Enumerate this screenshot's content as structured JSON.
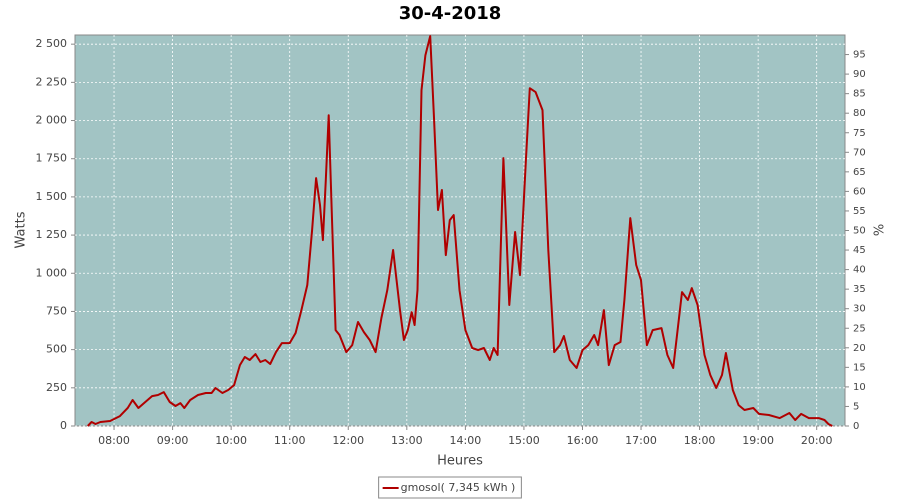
{
  "chart_data": {
    "type": "line",
    "title": "30-4-2018",
    "x_label": "Heures",
    "y_label": "Watts",
    "y2_label": "%",
    "x": [
      "07:33",
      "07:37",
      "07:41",
      "07:46",
      "07:56",
      "08:06",
      "08:14",
      "08:19",
      "08:25",
      "08:32",
      "08:39",
      "08:45",
      "08:51",
      "08:57",
      "09:03",
      "09:08",
      "09:12",
      "09:18",
      "09:26",
      "09:34",
      "09:40",
      "09:44",
      "09:51",
      "09:57",
      "10:03",
      "10:09",
      "10:14",
      "10:19",
      "10:25",
      "10:30",
      "10:35",
      "10:40",
      "10:46",
      "10:52",
      "11:00",
      "11:06",
      "11:12",
      "11:18",
      "11:23",
      "11:27",
      "11:31",
      "11:34",
      "11:37",
      "11:40",
      "11:43",
      "11:47",
      "11:51",
      "11:58",
      "12:04",
      "12:10",
      "12:16",
      "12:22",
      "12:28",
      "12:34",
      "12:40",
      "12:46",
      "12:53",
      "12:57",
      "13:01",
      "13:05",
      "13:08",
      "13:11",
      "13:15",
      "13:19",
      "13:24",
      "13:28",
      "13:32",
      "13:36",
      "13:40",
      "13:44",
      "13:48",
      "13:54",
      "14:00",
      "14:07",
      "14:13",
      "14:19",
      "14:25",
      "14:29",
      "14:33",
      "14:39",
      "14:45",
      "14:51",
      "14:56",
      "15:02",
      "15:06",
      "15:12",
      "15:19",
      "15:25",
      "15:31",
      "15:37",
      "15:41",
      "15:47",
      "15:54",
      "16:00",
      "16:06",
      "16:12",
      "16:16",
      "16:22",
      "16:27",
      "16:33",
      "16:39",
      "16:43",
      "16:49",
      "16:55",
      "17:00",
      "17:06",
      "17:12",
      "17:21",
      "17:27",
      "17:33",
      "17:42",
      "17:48",
      "17:52",
      "17:58",
      "18:05",
      "18:11",
      "18:17",
      "18:23",
      "18:27",
      "18:34",
      "18:40",
      "18:46",
      "18:55",
      "19:01",
      "19:11",
      "19:22",
      "19:32",
      "19:38",
      "19:44",
      "19:52",
      "20:02",
      "20:08",
      "20:12",
      "20:16"
    ],
    "series": [
      {
        "name": "gmosol( 7,345 kWh )",
        "color": "#b00000",
        "values": [
          0,
          26,
          13,
          26,
          33,
          65,
          118,
          170,
          118,
          157,
          196,
          203,
          222,
          157,
          131,
          150,
          118,
          170,
          203,
          216,
          216,
          249,
          216,
          236,
          268,
          399,
          452,
          432,
          471,
          419,
          432,
          406,
          484,
          543,
          543,
          609,
          759,
          923,
          1283,
          1623,
          1447,
          1217,
          1610,
          2035,
          1414,
          628,
          596,
          484,
          530,
          681,
          615,
          563,
          484,
          707,
          890,
          1152,
          759,
          563,
          628,
          746,
          661,
          890,
          2199,
          2428,
          2553,
          2003,
          1414,
          1545,
          1119,
          1348,
          1381,
          890,
          628,
          511,
          497,
          511,
          432,
          511,
          465,
          1754,
          792,
          1270,
          988,
          1741,
          2212,
          2186,
          2068,
          1152,
          484,
          530,
          589,
          432,
          380,
          497,
          530,
          596,
          530,
          759,
          399,
          530,
          550,
          825,
          1361,
          1054,
          955,
          530,
          628,
          641,
          465,
          380,
          877,
          825,
          903,
          792,
          465,
          334,
          249,
          334,
          478,
          236,
          137,
          105,
          118,
          79,
          72,
          52,
          85,
          39,
          79,
          52,
          52,
          39,
          13,
          0
        ]
      }
    ],
    "xlim": [
      "07:20",
      "20:29"
    ],
    "xticks": [
      "08:00",
      "09:00",
      "10:00",
      "11:00",
      "12:00",
      "13:00",
      "14:00",
      "15:00",
      "16:00",
      "17:00",
      "18:00",
      "19:00",
      "20:00"
    ],
    "ylim": [
      0,
      2560
    ],
    "yticks": [
      0,
      {
        "value": 250,
        "label": "250"
      },
      {
        "value": 500,
        "label": "500"
      },
      {
        "value": 750,
        "label": "750"
      },
      {
        "value": 1000,
        "label": "1 000"
      },
      {
        "value": 1250,
        "label": "1 250"
      },
      {
        "value": 1500,
        "label": "1 500"
      },
      {
        "value": 1750,
        "label": "1 750"
      },
      {
        "value": 2000,
        "label": "2 000"
      },
      {
        "value": 2250,
        "label": "2 250"
      },
      {
        "value": 2500,
        "label": "2 500"
      }
    ],
    "y2lim": [
      0,
      100
    ],
    "y2ticks": [
      0,
      5,
      10,
      15,
      20,
      25,
      30,
      35,
      40,
      45,
      50,
      55,
      60,
      65,
      70,
      75,
      80,
      85,
      90,
      95
    ],
    "grid": true,
    "background": "#a2c4c4",
    "legend": "bottom"
  }
}
